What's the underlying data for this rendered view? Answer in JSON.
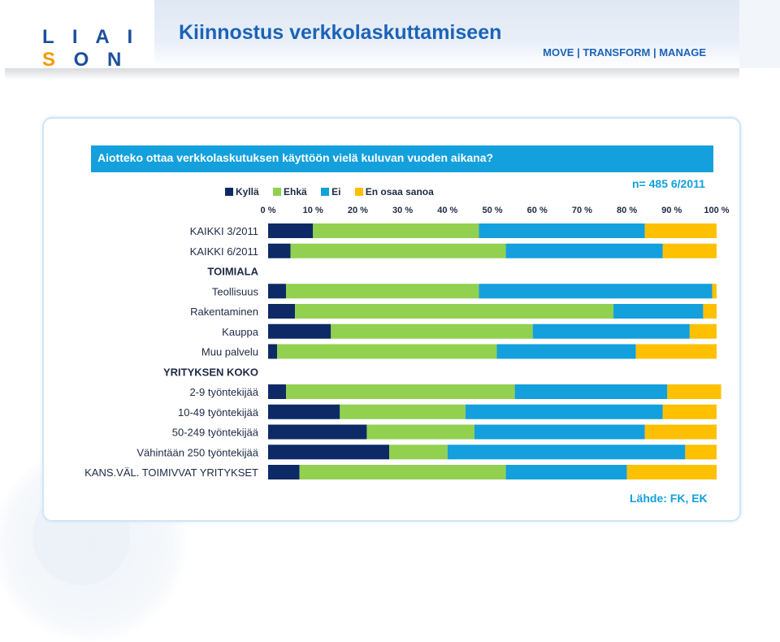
{
  "header": {
    "logo": "LIAISON",
    "title": "Kiinnostus verkkolaskuttamiseen",
    "tagline": "MOVE | TRANSFORM | MANAGE"
  },
  "question": "Aiotteko ottaa verkkolaskutuksen käyttöön vielä kuluvan vuoden aikana?",
  "sample_note": "n= 485  6/2011",
  "source": "Lähde: FK, EK",
  "chart_data": {
    "type": "bar",
    "orientation": "horizontal",
    "stacked": true,
    "xlim": [
      0,
      100
    ],
    "xticks": [
      "0 %",
      "10 %",
      "20 %",
      "30 %",
      "40 %",
      "50 %",
      "60 %",
      "70 %",
      "80 %",
      "90 %",
      "100 %"
    ],
    "categories": [
      "KAIKKI 3/2011",
      "KAIKKI 6/2011",
      "TOIMIALA",
      "Teollisuus",
      "Rakentaminen",
      "Kauppa",
      "Muu palvelu",
      "YRITYKSEN KOKO",
      "2-9 työntekijää",
      "10-49 työntekijää",
      "50-249 työntekijää",
      "Vähintään 250 työntekijää",
      "KANS.VÄL. TOIMIVVAT YRITYKSET"
    ],
    "header_rows": [
      false,
      false,
      true,
      false,
      false,
      false,
      false,
      true,
      false,
      false,
      false,
      false,
      false
    ],
    "series": [
      {
        "name": "Kyllä",
        "color": "#0d2a66",
        "values": [
          10,
          5,
          null,
          4,
          6,
          14,
          2,
          null,
          4,
          16,
          22,
          27,
          7
        ]
      },
      {
        "name": "Ehkä",
        "color": "#92d050",
        "values": [
          37,
          48,
          null,
          43,
          71,
          45,
          49,
          null,
          51,
          28,
          24,
          13,
          46
        ]
      },
      {
        "name": "Ei",
        "color": "#13a0dc",
        "values": [
          37,
          35,
          null,
          52,
          20,
          35,
          31,
          null,
          34,
          44,
          38,
          53,
          27
        ]
      },
      {
        "name": "En osaa sanoa",
        "color": "#ffc000",
        "values": [
          16,
          12,
          null,
          1,
          3,
          6,
          18,
          null,
          12,
          12,
          16,
          7,
          20
        ]
      }
    ],
    "grid": false,
    "legend": "top"
  }
}
